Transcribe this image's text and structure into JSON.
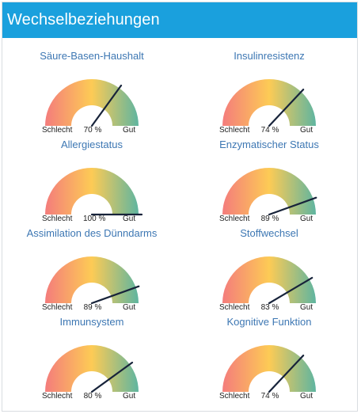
{
  "page": {
    "title": "Wechselbeziehungen"
  },
  "legend": {
    "bad": "Schlecht",
    "good": "Gut"
  },
  "colors": {
    "header_bg": "#1aa0dd",
    "title_text": "#3d77b3",
    "gauge_low": "#f47c7c",
    "gauge_mid": "#fdcb55",
    "gauge_high": "#5fb5a0",
    "needle": "#17233a"
  },
  "gauges": [
    {
      "title": "Säure-Basen-Haushalt",
      "value": 70,
      "label": "70 %"
    },
    {
      "title": "Insulinresistenz",
      "value": 74,
      "label": "74 %"
    },
    {
      "title": "Allergiestatus",
      "value": 100,
      "label": "100 %"
    },
    {
      "title": "Enzymatischer Status",
      "value": 89,
      "label": "89 %"
    },
    {
      "title": "Assimilation des Dünndarms",
      "value": 89,
      "label": "89 %"
    },
    {
      "title": "Stoffwechsel",
      "value": 83,
      "label": "83 %"
    },
    {
      "title": "Immunsystem",
      "value": 80,
      "label": "80 %"
    },
    {
      "title": "Kognitive Funktion",
      "value": 74,
      "label": "74 %"
    }
  ]
}
